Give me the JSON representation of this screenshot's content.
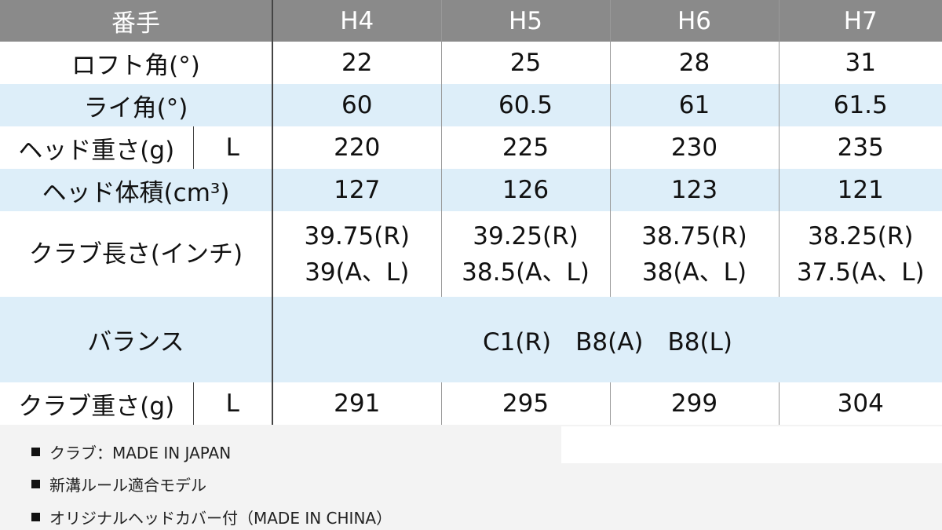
{
  "header": {
    "label": "番手",
    "columns": [
      "H4",
      "H5",
      "H6",
      "H7"
    ]
  },
  "rows": {
    "loft": {
      "label": "ロフト角(°)",
      "values": [
        "22",
        "25",
        "28",
        "31"
      ]
    },
    "lie": {
      "label": "ライ角(°)",
      "values": [
        "60",
        "60.5",
        "61",
        "61.5"
      ]
    },
    "head_weight": {
      "label": "ヘッド重さ(g)",
      "sub": "L",
      "values": [
        "220",
        "225",
        "230",
        "235"
      ]
    },
    "head_volume": {
      "label": "ヘッド体積(cm³)",
      "values": [
        "127",
        "126",
        "123",
        "121"
      ]
    },
    "club_length": {
      "label": "クラブ長さ(インチ)",
      "values": [
        [
          "39.75(R)",
          "39(A、L)"
        ],
        [
          "39.25(R)",
          "38.5(A、L)"
        ],
        [
          "38.75(R)",
          "38(A、L)"
        ],
        [
          "38.25(R)",
          "37.5(A、L)"
        ]
      ]
    },
    "balance": {
      "label": "バランス",
      "value": "C1(R)　B8(A)　B8(L)"
    },
    "club_weight": {
      "label": "クラブ重さ(g)",
      "sub": "L",
      "values": [
        "291",
        "295",
        "299",
        "304"
      ]
    }
  },
  "notes": [
    "クラブ：MADE IN JAPAN",
    "新溝ルール適合モデル",
    "オリジナルヘッドカバー付（MADE IN CHINA）"
  ],
  "colors": {
    "header_bg": "#8a8a8a",
    "stripe": "#ddeef9"
  }
}
